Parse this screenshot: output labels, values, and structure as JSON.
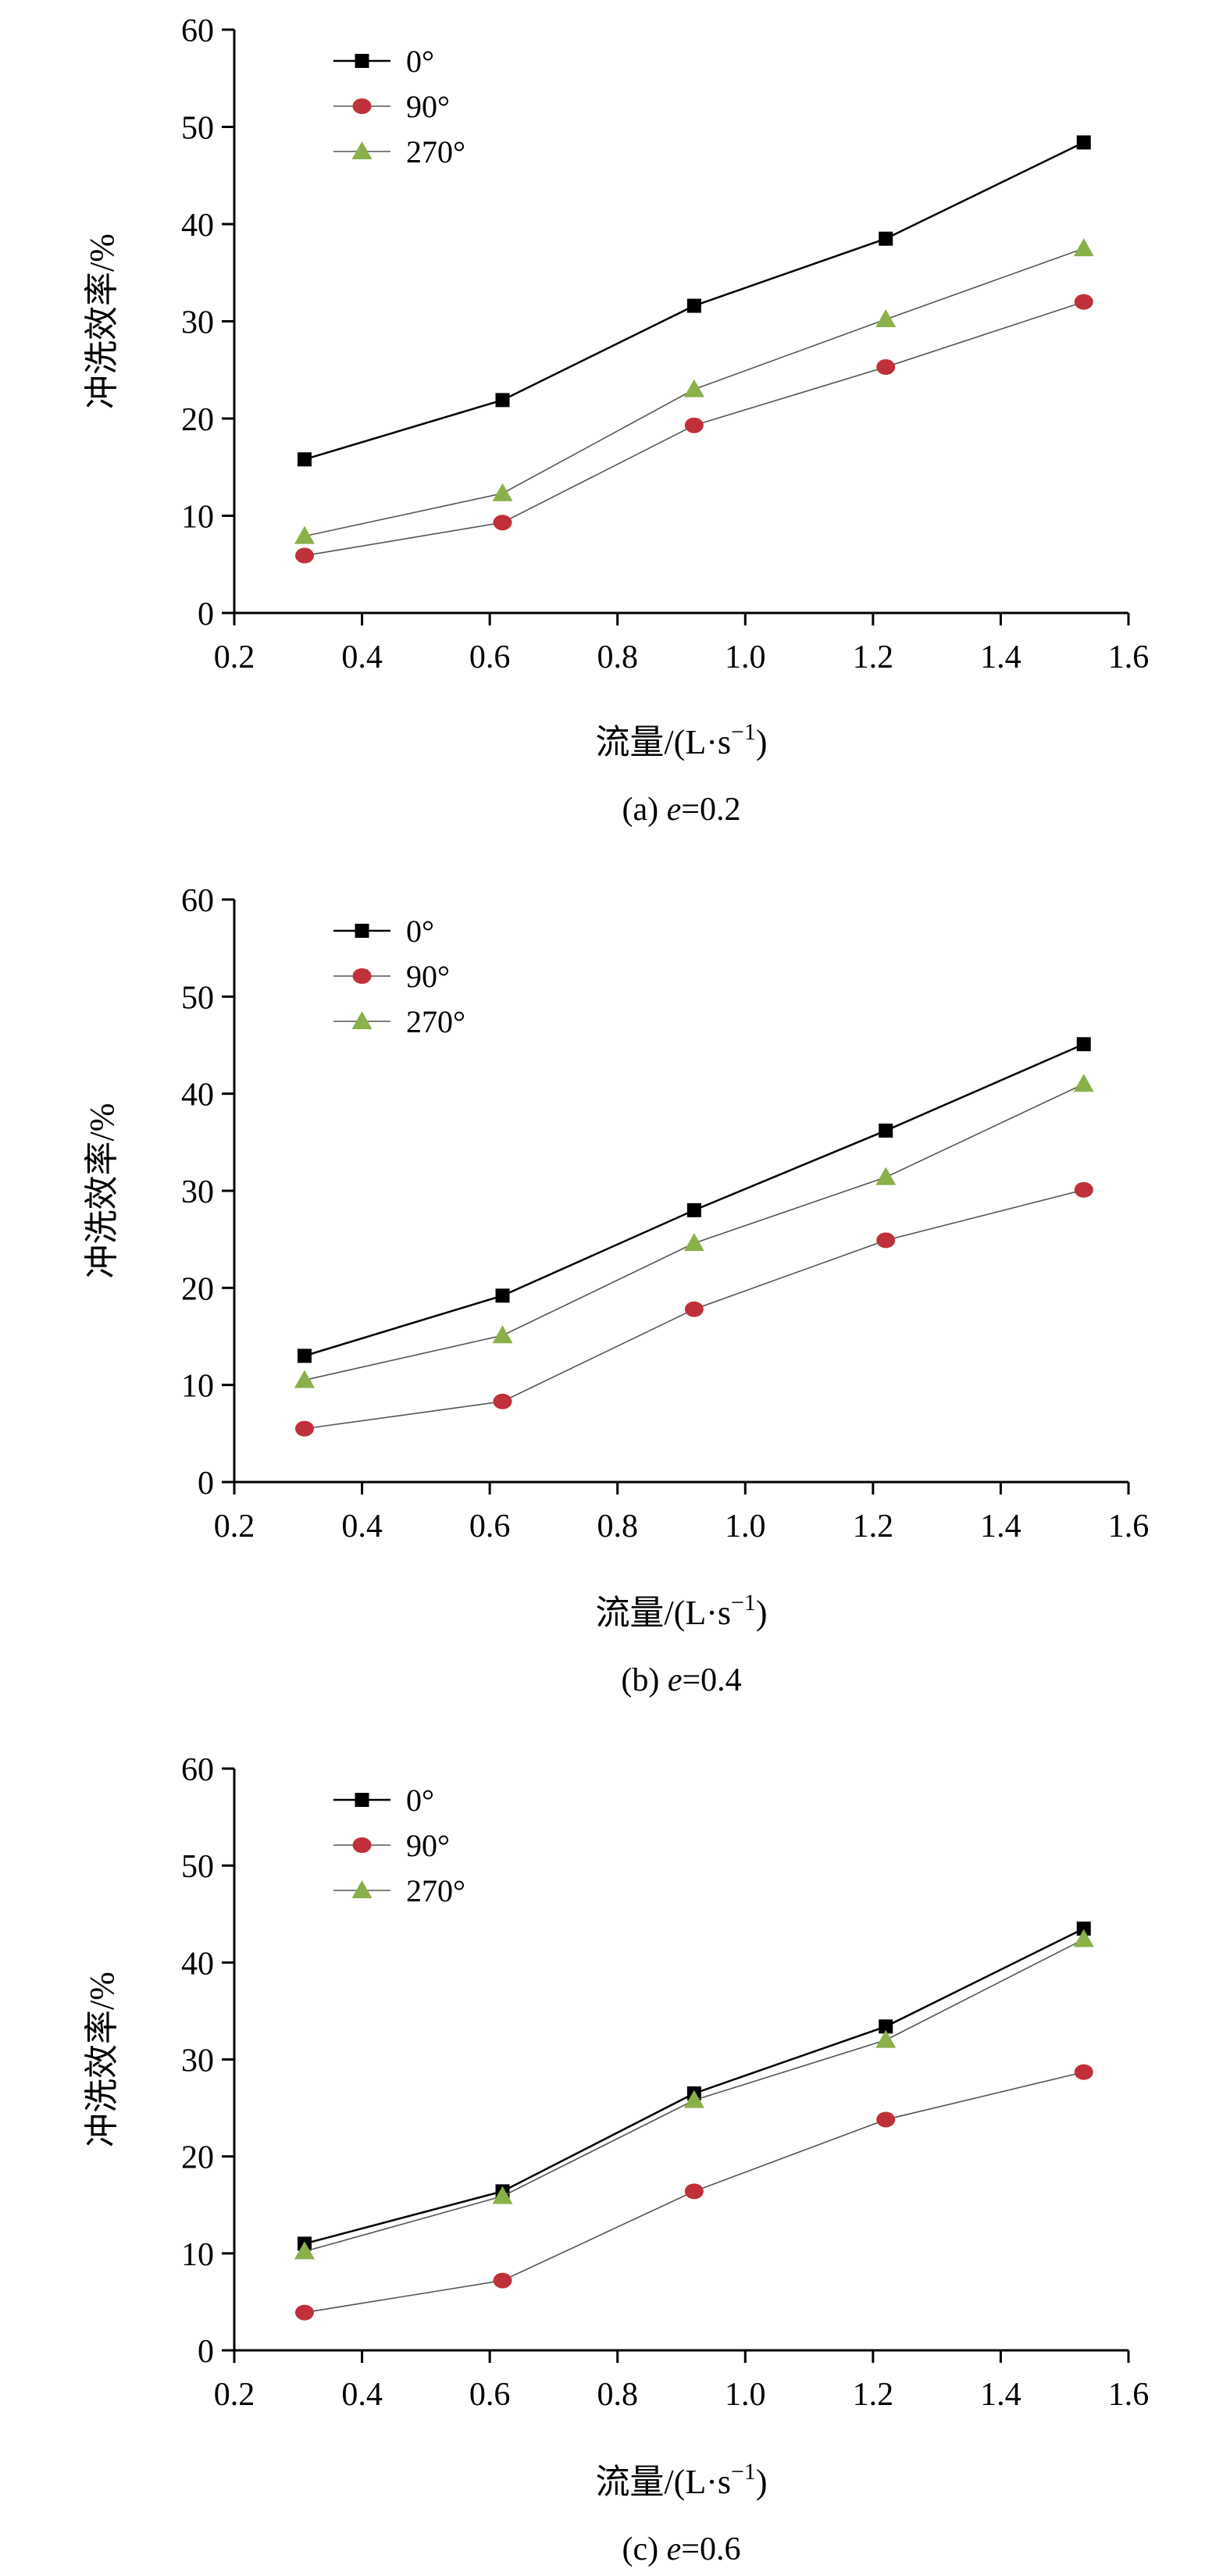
{
  "chart_data": [
    {
      "type": "line",
      "caption_prefix": "(a) ",
      "caption_var": "e",
      "caption_value": "=0.2",
      "xlabel": "流量/(L·s",
      "xlabel_sup": "−1",
      "xlabel_close": ")",
      "ylabel": "冲洗效率/%",
      "xlim": [
        0.2,
        1.6
      ],
      "ylim": [
        0,
        60
      ],
      "xticks": [
        "0.2",
        "0.4",
        "0.6",
        "0.8",
        "1.0",
        "1.2",
        "1.4",
        "1.6"
      ],
      "yticks": [
        "0",
        "10",
        "20",
        "30",
        "40",
        "50",
        "60"
      ],
      "grid": false,
      "legend_position": "top-left",
      "x": [
        0.31,
        0.62,
        0.92,
        1.22,
        1.53
      ],
      "series": [
        {
          "name": "0°",
          "values": [
            15.8,
            21.9,
            31.6,
            38.5,
            48.4
          ],
          "color": "#000000",
          "marker": "square"
        },
        {
          "name": "90°",
          "values": [
            5.9,
            9.3,
            19.3,
            25.3,
            32.0
          ],
          "color": "#c0303b",
          "marker": "circle"
        },
        {
          "name": "270°",
          "values": [
            7.9,
            12.3,
            23.0,
            30.2,
            37.5
          ],
          "color": "#8ab04a",
          "marker": "triangle"
        }
      ]
    },
    {
      "type": "line",
      "caption_prefix": "(b) ",
      "caption_var": "e",
      "caption_value": "=0.4",
      "xlabel": "流量/(L·s",
      "xlabel_sup": "−1",
      "xlabel_close": ")",
      "ylabel": "冲洗效率/%",
      "xlim": [
        0.2,
        1.6
      ],
      "ylim": [
        0,
        60
      ],
      "xticks": [
        "0.2",
        "0.4",
        "0.6",
        "0.8",
        "1.0",
        "1.2",
        "1.4",
        "1.6"
      ],
      "yticks": [
        "0",
        "10",
        "20",
        "30",
        "40",
        "50",
        "60"
      ],
      "grid": false,
      "legend_position": "top-left",
      "x": [
        0.31,
        0.62,
        0.92,
        1.22,
        1.53
      ],
      "series": [
        {
          "name": "0°",
          "values": [
            13.0,
            19.2,
            28.0,
            36.2,
            45.1
          ],
          "color": "#000000",
          "marker": "square"
        },
        {
          "name": "90°",
          "values": [
            5.5,
            8.3,
            17.8,
            24.9,
            30.1
          ],
          "color": "#c0303b",
          "marker": "circle"
        },
        {
          "name": "270°",
          "values": [
            10.5,
            15.1,
            24.6,
            31.4,
            41.0
          ],
          "color": "#8ab04a",
          "marker": "triangle"
        }
      ]
    },
    {
      "type": "line",
      "caption_prefix": "(c) ",
      "caption_var": "e",
      "caption_value": "=0.6",
      "xlabel": "流量/(L·s",
      "xlabel_sup": "−1",
      "xlabel_close": ")",
      "ylabel": "冲洗效率/%",
      "xlim": [
        0.2,
        1.6
      ],
      "ylim": [
        0,
        60
      ],
      "xticks": [
        "0.2",
        "0.4",
        "0.6",
        "0.8",
        "1.0",
        "1.2",
        "1.4",
        "1.6"
      ],
      "yticks": [
        "0",
        "10",
        "20",
        "30",
        "40",
        "50",
        "60"
      ],
      "grid": false,
      "legend_position": "top-left",
      "x": [
        0.31,
        0.62,
        0.92,
        1.22,
        1.53
      ],
      "series": [
        {
          "name": "0°",
          "values": [
            11.0,
            16.4,
            26.5,
            33.4,
            43.5
          ],
          "color": "#000000",
          "marker": "square"
        },
        {
          "name": "90°",
          "values": [
            3.9,
            7.2,
            16.4,
            23.8,
            28.7
          ],
          "color": "#c0303b",
          "marker": "circle"
        },
        {
          "name": "270°",
          "values": [
            10.2,
            15.9,
            25.8,
            32.0,
            42.4
          ],
          "color": "#8ab04a",
          "marker": "triangle"
        }
      ]
    }
  ]
}
